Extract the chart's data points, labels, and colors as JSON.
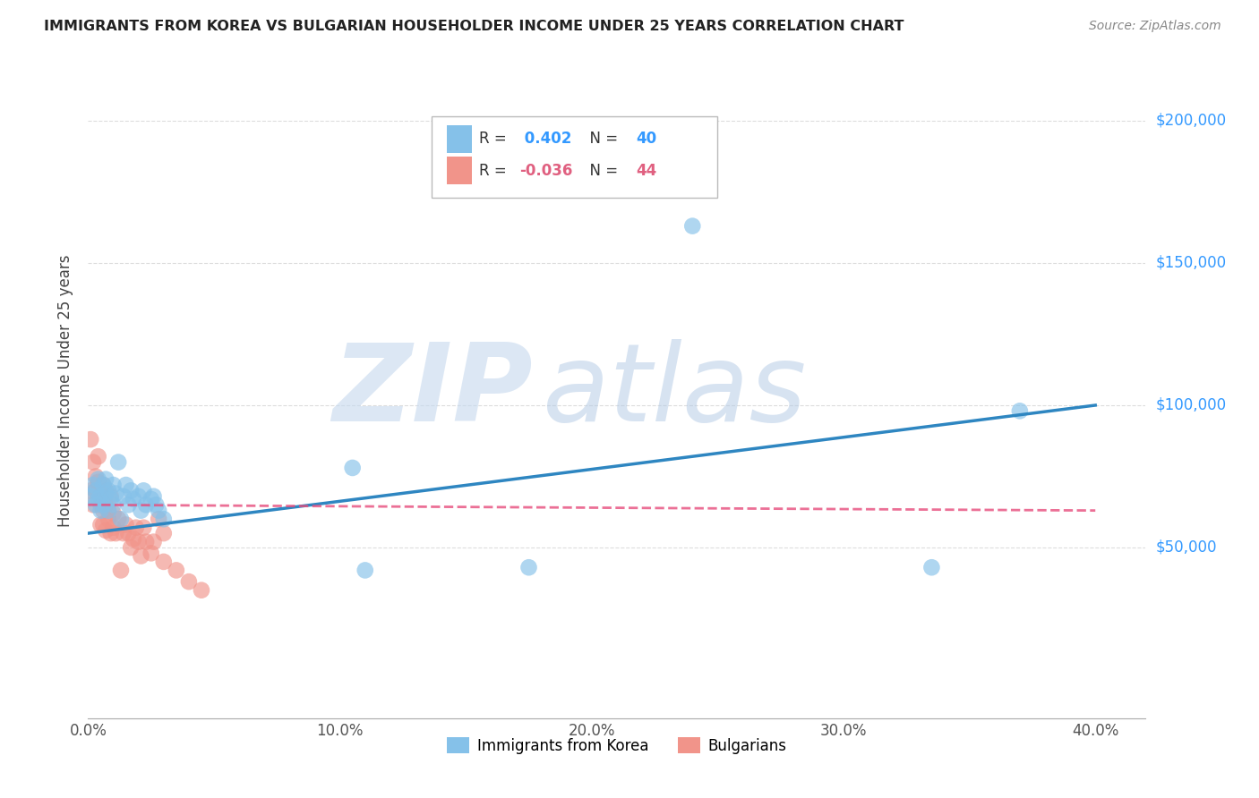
{
  "title": "IMMIGRANTS FROM KOREA VS BULGARIAN HOUSEHOLDER INCOME UNDER 25 YEARS CORRELATION CHART",
  "source": "Source: ZipAtlas.com",
  "ylabel": "Householder Income Under 25 years",
  "xlim": [
    0.0,
    0.42
  ],
  "ylim": [
    -10000,
    220000
  ],
  "xtick_labels": [
    "0.0%",
    "10.0%",
    "20.0%",
    "30.0%",
    "40.0%"
  ],
  "xtick_vals": [
    0.0,
    0.1,
    0.2,
    0.3,
    0.4
  ],
  "ytick_labels": [
    "$50,000",
    "$100,000",
    "$150,000",
    "$200,000"
  ],
  "ytick_vals": [
    50000,
    100000,
    150000,
    200000
  ],
  "korea_R": 0.402,
  "korea_N": 40,
  "bulg_R": -0.036,
  "bulg_N": 44,
  "korea_color": "#85C1E9",
  "bulg_color": "#F1948A",
  "korea_line_color": "#2E86C1",
  "bulg_line_color": "#E74C7C",
  "watermark_zip": "ZIP",
  "watermark_atlas": "atlas",
  "watermark_color_zip": "#B8CCE8",
  "watermark_color_atlas": "#A8C4E0",
  "legend_korea": "Immigrants from Korea",
  "legend_bulg": "Bulgarians",
  "korea_x": [
    0.001,
    0.002,
    0.003,
    0.003,
    0.004,
    0.004,
    0.005,
    0.005,
    0.006,
    0.006,
    0.007,
    0.007,
    0.008,
    0.008,
    0.009,
    0.01,
    0.01,
    0.011,
    0.012,
    0.013,
    0.014,
    0.015,
    0.016,
    0.017,
    0.018,
    0.02,
    0.021,
    0.022,
    0.023,
    0.025,
    0.026,
    0.027,
    0.028,
    0.03,
    0.105,
    0.11,
    0.175,
    0.24,
    0.335,
    0.37
  ],
  "korea_y": [
    68000,
    72000,
    65000,
    70000,
    67000,
    74000,
    63000,
    68000,
    72000,
    65000,
    69000,
    74000,
    63000,
    70000,
    67000,
    72000,
    65000,
    69000,
    80000,
    60000,
    68000,
    72000,
    65000,
    70000,
    67000,
    68000,
    63000,
    70000,
    65000,
    67000,
    68000,
    65000,
    63000,
    60000,
    78000,
    42000,
    43000,
    163000,
    43000,
    98000
  ],
  "bulg_x": [
    0.001,
    0.001,
    0.002,
    0.002,
    0.003,
    0.003,
    0.004,
    0.004,
    0.005,
    0.005,
    0.005,
    0.006,
    0.006,
    0.006,
    0.007,
    0.007,
    0.007,
    0.008,
    0.008,
    0.009,
    0.009,
    0.01,
    0.01,
    0.011,
    0.012,
    0.013,
    0.014,
    0.015,
    0.016,
    0.017,
    0.018,
    0.019,
    0.02,
    0.021,
    0.022,
    0.023,
    0.025,
    0.026,
    0.028,
    0.03,
    0.03,
    0.035,
    0.04,
    0.045
  ],
  "bulg_y": [
    88000,
    70000,
    80000,
    65000,
    75000,
    70000,
    82000,
    73000,
    65000,
    68000,
    58000,
    72000,
    63000,
    58000,
    70000,
    65000,
    56000,
    60000,
    63000,
    68000,
    55000,
    62000,
    57000,
    55000,
    60000,
    42000,
    55000,
    58000,
    55000,
    50000,
    53000,
    57000,
    52000,
    47000,
    57000,
    52000,
    48000,
    52000,
    60000,
    55000,
    45000,
    42000,
    38000,
    35000
  ]
}
